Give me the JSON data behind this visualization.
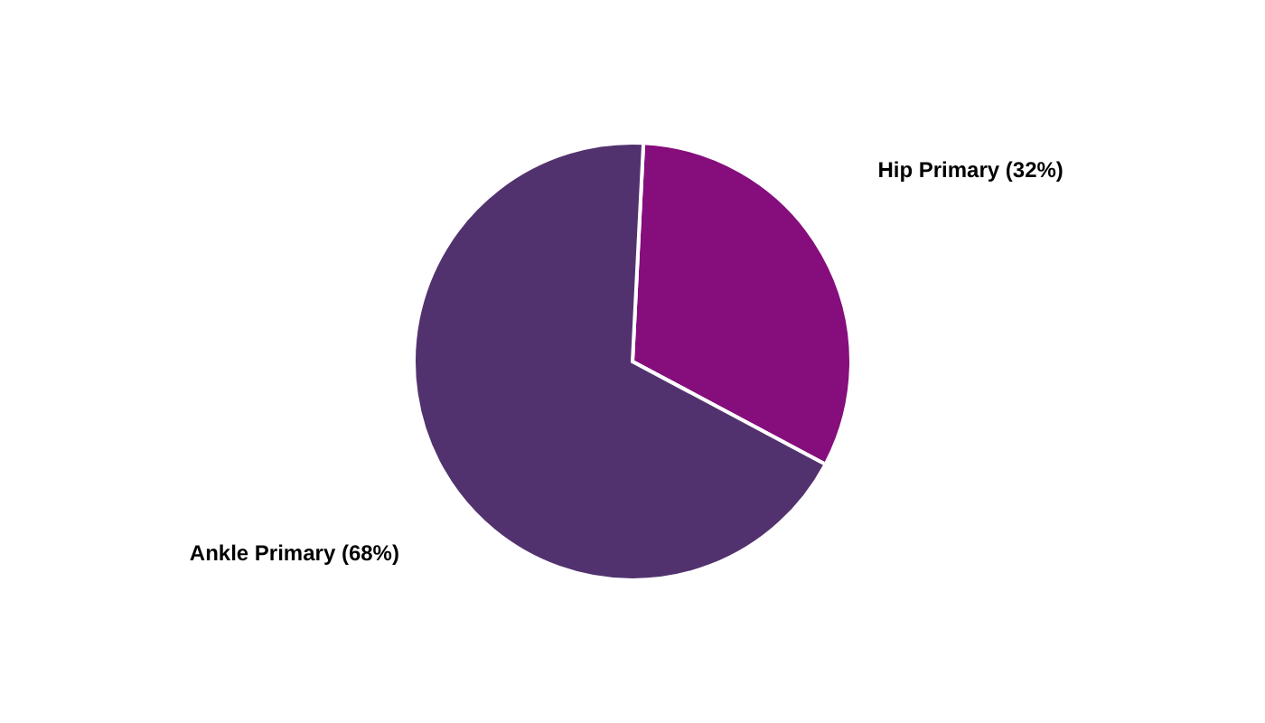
{
  "chart_data": {
    "type": "pie",
    "categories": [
      "Hip Primary (32%)",
      "Ankle Primary (68%)"
    ],
    "values": [
      32,
      68
    ],
    "colors": [
      "#850e7c",
      "#52326e"
    ],
    "legend": false
  }
}
